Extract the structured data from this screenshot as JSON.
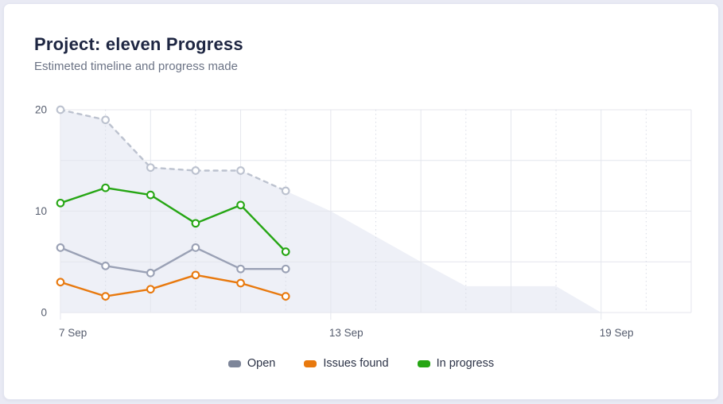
{
  "header": {
    "title": "Project: eleven Progress",
    "subtitle": "Estimeted timeline and progress made"
  },
  "chart_data": {
    "type": "line",
    "title": "Project: eleven Progress",
    "subtitle": "Estimeted timeline and progress made",
    "x_axis": {
      "unit": "date (September)",
      "domain": [
        7,
        21
      ],
      "ticks": [
        {
          "value": 7,
          "label": "7 Sep"
        },
        {
          "value": 13,
          "label": "13 Sep"
        },
        {
          "value": 19,
          "label": "19 Sep"
        }
      ]
    },
    "y_axis": {
      "lim": [
        0,
        20
      ],
      "tick_labels": [
        {
          "value": 0,
          "label": "0"
        },
        {
          "value": 10,
          "label": "10"
        },
        {
          "value": 20,
          "label": "20"
        }
      ],
      "gridline_step": 5
    },
    "legend_position": "bottom",
    "area": {
      "name": "Estimated timeline",
      "color": "#eef0f7",
      "days": [
        7,
        8,
        9,
        10,
        11,
        12,
        13,
        14,
        15,
        16,
        17,
        18,
        19
      ],
      "values": [
        20,
        19,
        14.3,
        14,
        14,
        12,
        10,
        7.5,
        5,
        2.6,
        2.6,
        2.6,
        0
      ]
    },
    "series": [
      {
        "name": "Estimated remaining",
        "style": "dashed",
        "color": "#bcc2cf",
        "line_color": "#bcc2cf",
        "in_legend": false,
        "days": [
          7,
          8,
          9,
          10,
          11,
          12
        ],
        "values": [
          20,
          19,
          14.3,
          14,
          14,
          12
        ]
      },
      {
        "name": "Open",
        "style": "solid",
        "color": "#7d8599",
        "line_color": "#9aa1b5",
        "in_legend": true,
        "days": [
          7,
          8,
          9,
          10,
          11,
          12
        ],
        "values": [
          6.4,
          4.6,
          3.9,
          6.4,
          4.3,
          4.3
        ]
      },
      {
        "name": "Issues found",
        "style": "solid",
        "color": "#e8790e",
        "line_color": "#e8790e",
        "in_legend": true,
        "days": [
          7,
          8,
          9,
          10,
          11,
          12
        ],
        "values": [
          3,
          1.6,
          2.3,
          3.7,
          2.9,
          1.6
        ]
      },
      {
        "name": "In progress",
        "style": "solid",
        "color": "#26a614",
        "line_color": "#26a614",
        "in_legend": true,
        "days": [
          7,
          8,
          9,
          10,
          11,
          12
        ],
        "values": [
          10.8,
          12.3,
          11.6,
          8.8,
          10.6,
          6
        ]
      }
    ]
  }
}
